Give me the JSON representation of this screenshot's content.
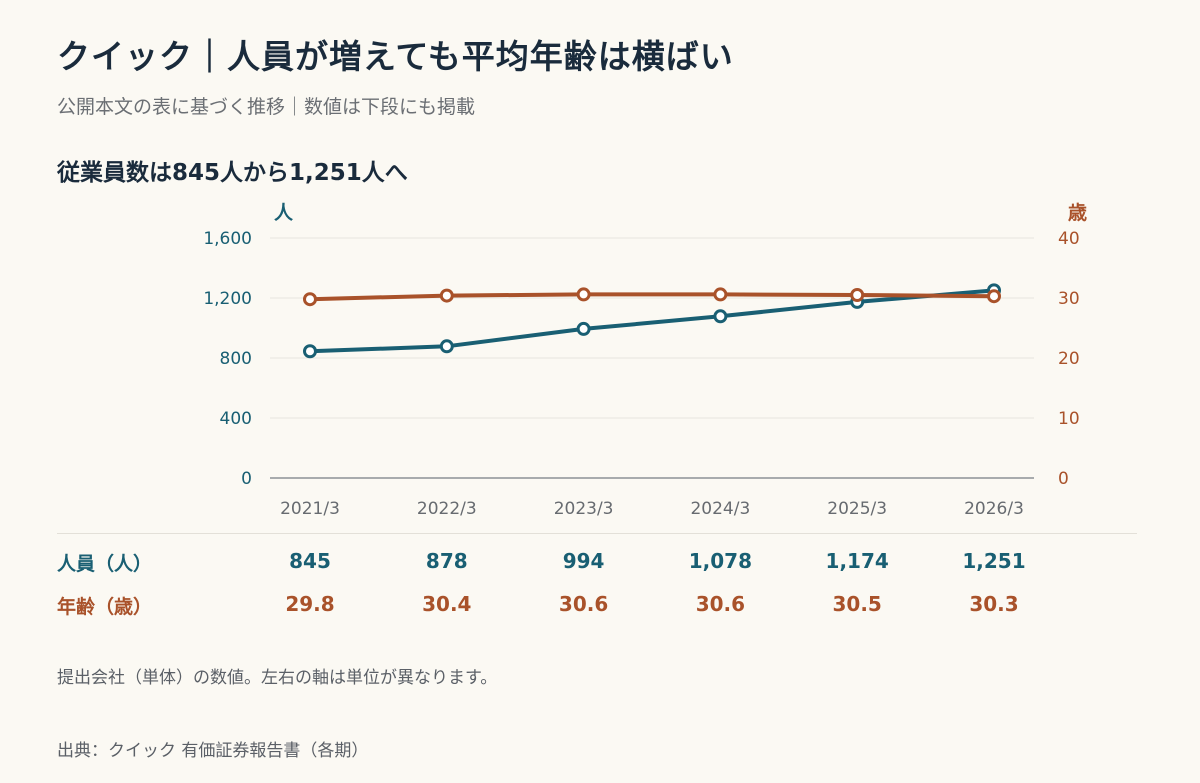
{
  "title": "クイック｜人員が増えても平均年齢は横ばい",
  "subtitle": "公開本文の表に基づく推移｜数値は下段にも掲載",
  "chart_heading": "従業員数は845人から1,251人へ",
  "colors": {
    "headcount": "#195f73",
    "age": "#a9522a",
    "grid": "#e7e5df",
    "axis": "#8d9196",
    "tick_x": "#676b70",
    "background": "#fbf9f3"
  },
  "chart_data": {
    "type": "line",
    "categories": [
      "2021/3",
      "2022/3",
      "2023/3",
      "2024/3",
      "2025/3",
      "2026/3"
    ],
    "series": [
      {
        "key": "headcount",
        "name": "人員（人）",
        "axis": "left",
        "values": [
          845,
          878,
          994,
          1078,
          1174,
          1251
        ],
        "labels": [
          "845",
          "878",
          "994",
          "1,078",
          "1,174",
          "1,251"
        ]
      },
      {
        "key": "age",
        "name": "年齢（歳）",
        "axis": "right",
        "values": [
          29.8,
          30.4,
          30.6,
          30.6,
          30.5,
          30.3
        ],
        "labels": [
          "29.8",
          "30.4",
          "30.6",
          "30.6",
          "30.5",
          "30.3"
        ]
      }
    ],
    "y_left": {
      "label": "人",
      "ylim": [
        0,
        1600
      ],
      "ticks": [
        0,
        400,
        800,
        1200,
        1600
      ],
      "tick_labels": [
        "0",
        "400",
        "800",
        "1,200",
        "1,600"
      ]
    },
    "y_right": {
      "label": "歳",
      "ylim": [
        0,
        40
      ],
      "ticks": [
        0,
        10,
        20,
        30,
        40
      ],
      "tick_labels": [
        "0",
        "10",
        "20",
        "30",
        "40"
      ]
    },
    "grid": true,
    "legend": "table below chart"
  },
  "table": {
    "headcount_label": "人員（人）",
    "age_label": "年齢（歳）"
  },
  "note": "提出会社（単体）の数値。左右の軸は単位が異なります。",
  "source": "出典：クイック 有価証券報告書（各期）"
}
